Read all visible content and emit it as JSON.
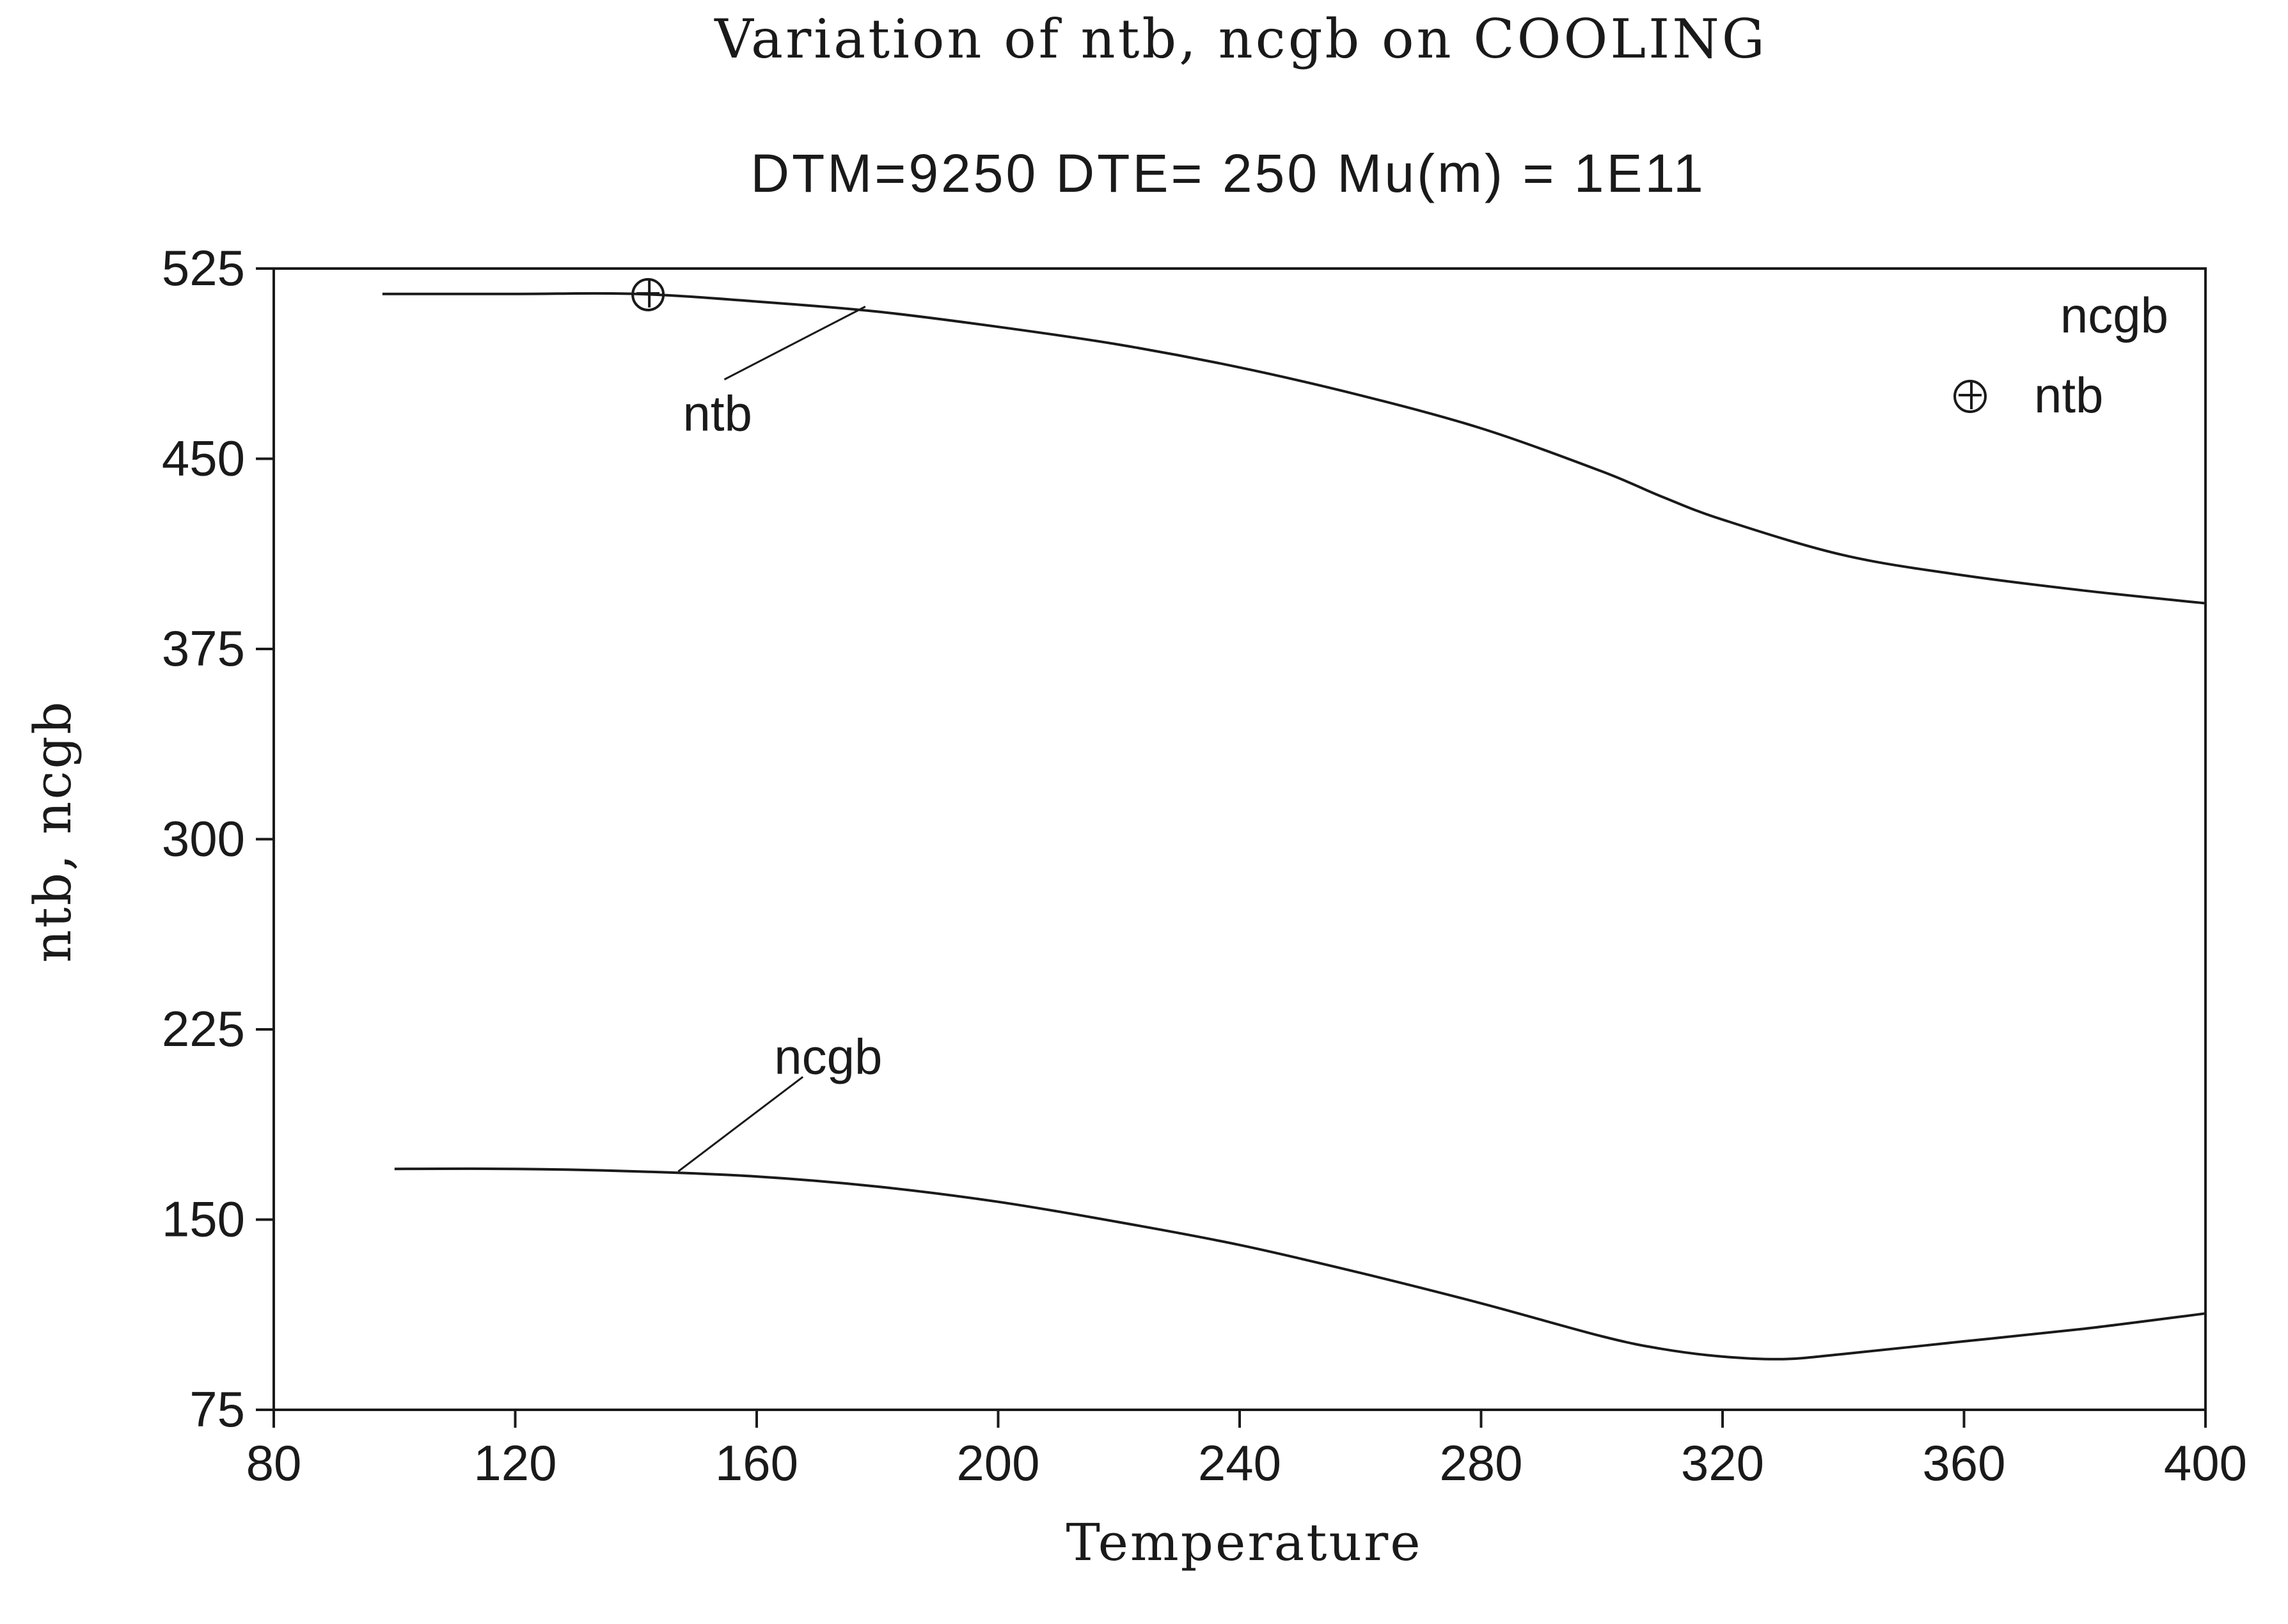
{
  "colors": {
    "background": "#ffffff",
    "ink": "#1a1a1a"
  },
  "chart_data": {
    "type": "line",
    "title": "Variation of ntb, ncgb on COOLING",
    "subtitle": "DTM=9250 DTE= 250 Mu(m) = 1E11",
    "xlabel": "Temperature",
    "ylabel": "ntb, ncgb",
    "xlim": [
      80,
      400
    ],
    "ylim": [
      75,
      525
    ],
    "xticks": [
      80,
      120,
      160,
      200,
      240,
      280,
      320,
      360,
      400
    ],
    "yticks": [
      75,
      150,
      225,
      300,
      375,
      450,
      525
    ],
    "grid": false,
    "legend": {
      "placement": "top-right",
      "entries": [
        "ncgb",
        "ntb"
      ]
    },
    "series": [
      {
        "name": "ntb",
        "marker": "circle-plus",
        "x": [
          98,
          120,
          140,
          160,
          180,
          200,
          220,
          240,
          260,
          280,
          300,
          310,
          320,
          340,
          360,
          380,
          400
        ],
        "y": [
          515,
          515,
          515,
          512,
          508,
          502,
          495,
          486,
          475,
          462,
          445,
          435,
          426,
          412,
          404,
          398,
          393
        ]
      },
      {
        "name": "ncgb",
        "x": [
          100,
          120,
          140,
          160,
          180,
          200,
          220,
          240,
          260,
          280,
          300,
          310,
          320,
          330,
          340,
          360,
          380,
          400
        ],
        "y": [
          170,
          170,
          169,
          167,
          163,
          157,
          149,
          140,
          129,
          117,
          104,
          99,
          96,
          95,
          97,
          102,
          107,
          113
        ]
      }
    ],
    "annotations": [
      {
        "text": "ntb",
        "series": "ntb",
        "x": 178,
        "y": 510,
        "label_x": 152,
        "label_y": 480
      },
      {
        "text": "ncgb",
        "series": "ncgb",
        "x": 147,
        "y": 169,
        "label_x": 165,
        "label_y": 205
      }
    ]
  }
}
